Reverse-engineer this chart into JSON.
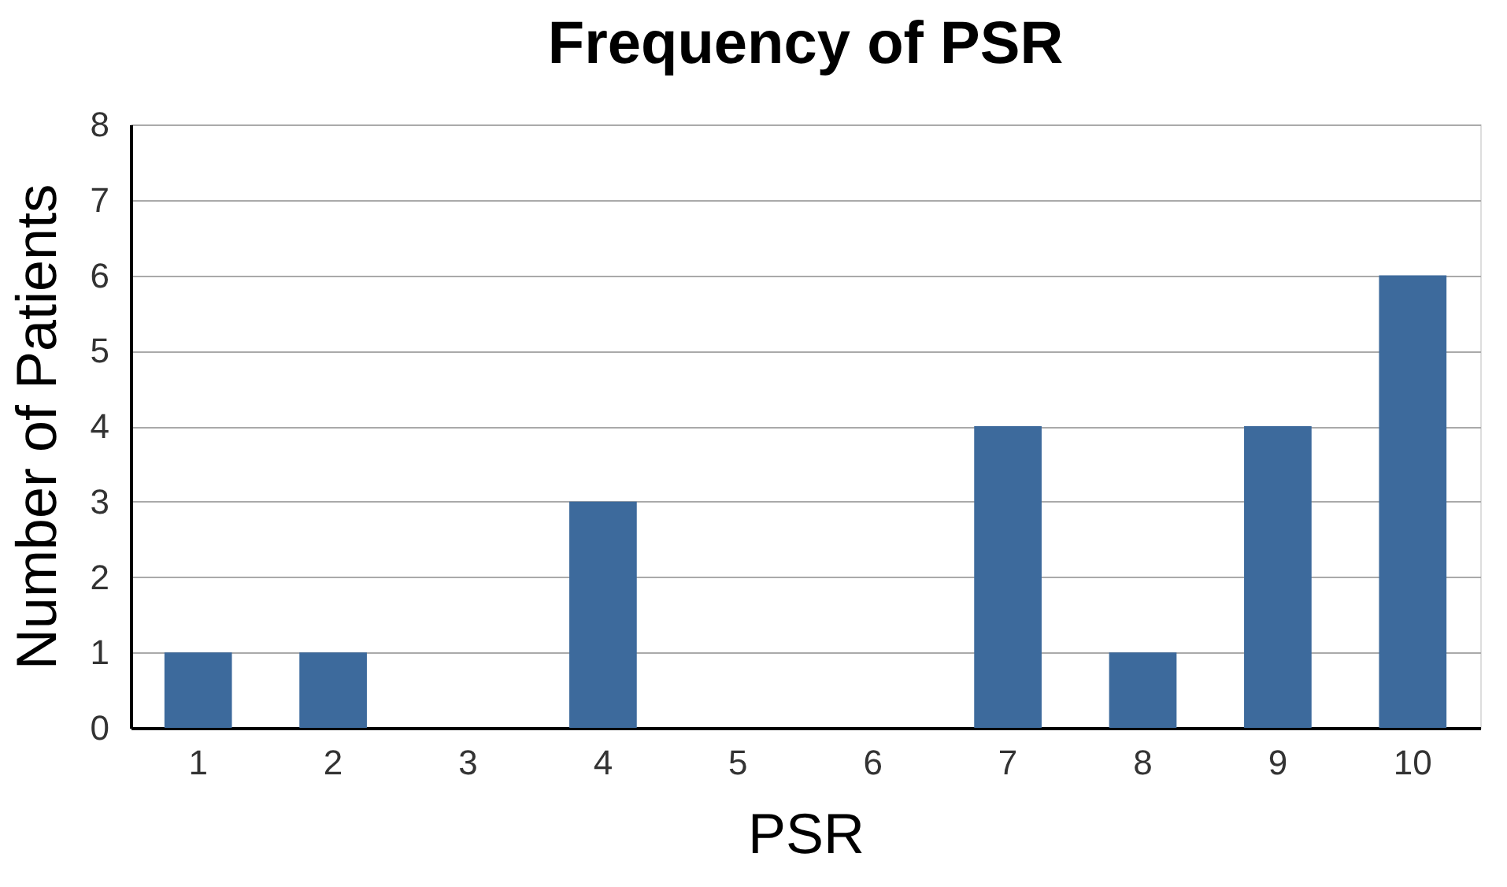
{
  "chart_data": {
    "type": "bar",
    "title": "Frequency of PSR",
    "xlabel": "PSR",
    "ylabel": "Number of Patients",
    "categories": [
      "1",
      "2",
      "3",
      "4",
      "5",
      "6",
      "7",
      "8",
      "9",
      "10"
    ],
    "values": [
      1,
      1,
      0,
      3,
      0,
      0,
      4,
      1,
      4,
      6
    ],
    "color": "#3d6a9c",
    "ylim": [
      0,
      8
    ],
    "yticks": [
      0,
      1,
      2,
      3,
      4,
      5,
      6,
      7,
      8
    ],
    "grid": "y"
  }
}
